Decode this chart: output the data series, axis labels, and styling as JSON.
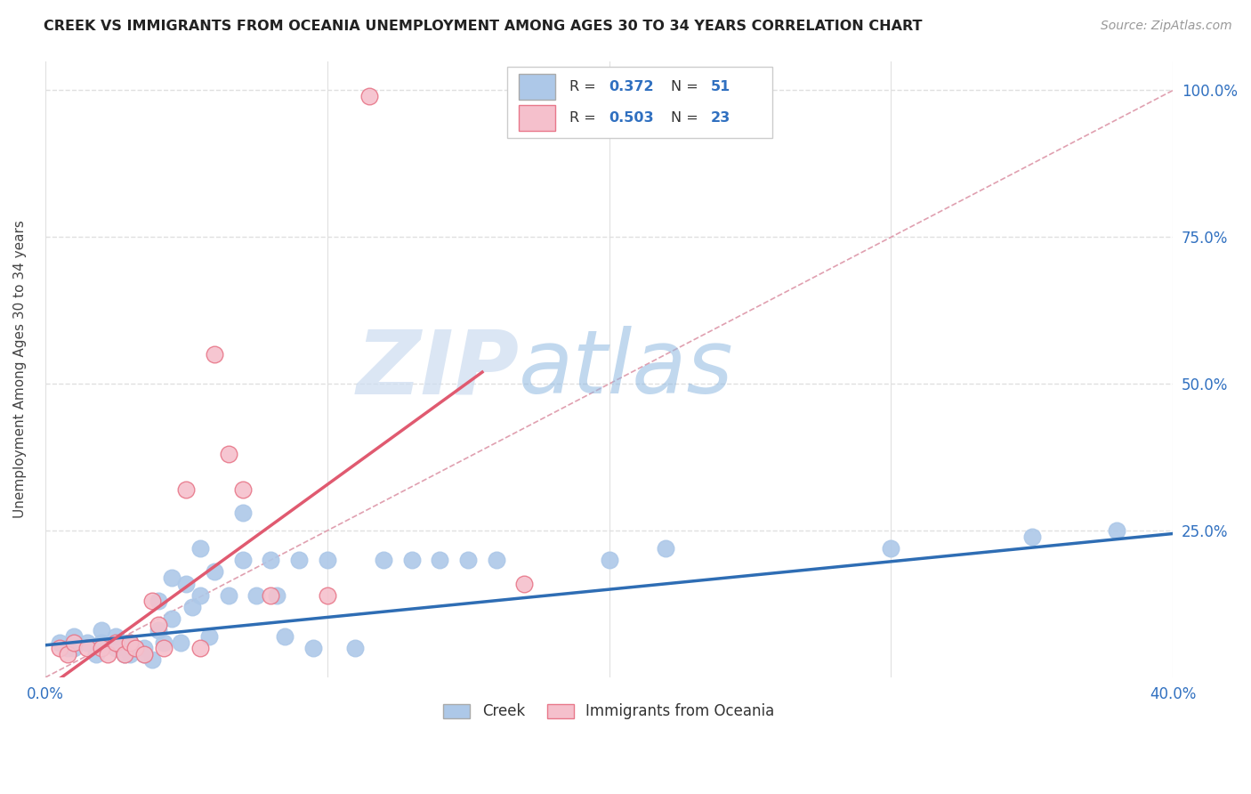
{
  "title": "CREEK VS IMMIGRANTS FROM OCEANIA UNEMPLOYMENT AMONG AGES 30 TO 34 YEARS CORRELATION CHART",
  "source": "Source: ZipAtlas.com",
  "ylabel": "Unemployment Among Ages 30 to 34 years",
  "xlim": [
    0.0,
    0.4
  ],
  "ylim": [
    0.0,
    1.05
  ],
  "xticks": [
    0.0,
    0.1,
    0.2,
    0.3,
    0.4
  ],
  "xtick_labels": [
    "0.0%",
    "",
    "",
    "",
    "40.0%"
  ],
  "yticks_right": [
    0.0,
    0.25,
    0.5,
    0.75,
    1.0
  ],
  "ytick_labels_right": [
    "",
    "25.0%",
    "50.0%",
    "75.0%",
    "100.0%"
  ],
  "creek_R": 0.372,
  "creek_N": 51,
  "oceania_R": 0.503,
  "oceania_N": 23,
  "creek_color": "#adc8e8",
  "creek_edge_color": "#adc8e8",
  "creek_line_color": "#2e6db4",
  "oceania_color": "#f5c0cc",
  "oceania_edge_color": "#e8788a",
  "oceania_line_color": "#e05a70",
  "ref_line_color": "#e0a0b0",
  "creek_scatter_x": [
    0.005,
    0.008,
    0.01,
    0.01,
    0.015,
    0.018,
    0.02,
    0.02,
    0.025,
    0.025,
    0.028,
    0.03,
    0.03,
    0.03,
    0.032,
    0.035,
    0.035,
    0.038,
    0.04,
    0.04,
    0.042,
    0.045,
    0.045,
    0.048,
    0.05,
    0.052,
    0.055,
    0.055,
    0.058,
    0.06,
    0.065,
    0.07,
    0.07,
    0.075,
    0.08,
    0.082,
    0.085,
    0.09,
    0.095,
    0.1,
    0.11,
    0.12,
    0.13,
    0.14,
    0.15,
    0.16,
    0.2,
    0.22,
    0.3,
    0.35,
    0.38
  ],
  "creek_scatter_y": [
    0.06,
    0.05,
    0.07,
    0.05,
    0.06,
    0.04,
    0.08,
    0.06,
    0.07,
    0.05,
    0.04,
    0.06,
    0.05,
    0.04,
    0.05,
    0.04,
    0.05,
    0.03,
    0.13,
    0.08,
    0.06,
    0.17,
    0.1,
    0.06,
    0.16,
    0.12,
    0.22,
    0.14,
    0.07,
    0.18,
    0.14,
    0.28,
    0.2,
    0.14,
    0.2,
    0.14,
    0.07,
    0.2,
    0.05,
    0.2,
    0.05,
    0.2,
    0.2,
    0.2,
    0.2,
    0.2,
    0.2,
    0.22,
    0.22,
    0.24,
    0.25
  ],
  "oceania_scatter_x": [
    0.005,
    0.008,
    0.01,
    0.015,
    0.02,
    0.022,
    0.025,
    0.028,
    0.03,
    0.032,
    0.035,
    0.038,
    0.04,
    0.042,
    0.05,
    0.055,
    0.06,
    0.065,
    0.07,
    0.08,
    0.1,
    0.115,
    0.17
  ],
  "oceania_scatter_y": [
    0.05,
    0.04,
    0.06,
    0.05,
    0.05,
    0.04,
    0.06,
    0.04,
    0.06,
    0.05,
    0.04,
    0.13,
    0.09,
    0.05,
    0.32,
    0.05,
    0.55,
    0.38,
    0.32,
    0.14,
    0.14,
    0.99,
    0.16
  ],
  "creek_trend_x": [
    0.0,
    0.4
  ],
  "creek_trend_y": [
    0.055,
    0.245
  ],
  "oceania_trend_x": [
    0.0,
    0.155
  ],
  "oceania_trend_y": [
    -0.02,
    0.52
  ],
  "ref_line_x": [
    0.0,
    0.4
  ],
  "ref_line_y": [
    0.0,
    1.0
  ],
  "watermark_zip": "ZIP",
  "watermark_atlas": "atlas",
  "background_color": "#ffffff",
  "grid_color": "#e0e0e0",
  "title_fontsize": 11.5,
  "marker_size": 180
}
